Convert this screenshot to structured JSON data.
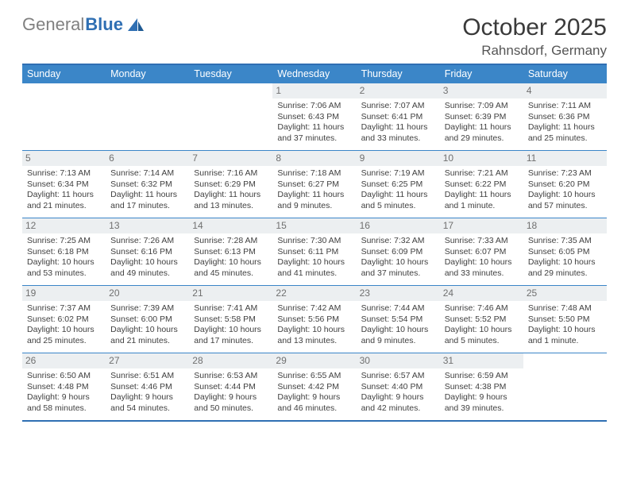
{
  "brand": {
    "gray": "General",
    "blue": "Blue"
  },
  "title": {
    "month": "October 2025",
    "location": "Rahnsdorf, Germany"
  },
  "dow": [
    "Sunday",
    "Monday",
    "Tuesday",
    "Wednesday",
    "Thursday",
    "Friday",
    "Saturday"
  ],
  "colors": {
    "header_bg": "#3b86c8",
    "border": "#2f6fb3",
    "daynum_bg": "#eceff1"
  },
  "weeks": [
    [
      {
        "blank": true
      },
      {
        "blank": true
      },
      {
        "blank": true
      },
      {
        "n": "1",
        "sr": "7:06 AM",
        "ss": "6:43 PM",
        "dl": "11 hours and 37 minutes."
      },
      {
        "n": "2",
        "sr": "7:07 AM",
        "ss": "6:41 PM",
        "dl": "11 hours and 33 minutes."
      },
      {
        "n": "3",
        "sr": "7:09 AM",
        "ss": "6:39 PM",
        "dl": "11 hours and 29 minutes."
      },
      {
        "n": "4",
        "sr": "7:11 AM",
        "ss": "6:36 PM",
        "dl": "11 hours and 25 minutes."
      }
    ],
    [
      {
        "n": "5",
        "sr": "7:13 AM",
        "ss": "6:34 PM",
        "dl": "11 hours and 21 minutes."
      },
      {
        "n": "6",
        "sr": "7:14 AM",
        "ss": "6:32 PM",
        "dl": "11 hours and 17 minutes."
      },
      {
        "n": "7",
        "sr": "7:16 AM",
        "ss": "6:29 PM",
        "dl": "11 hours and 13 minutes."
      },
      {
        "n": "8",
        "sr": "7:18 AM",
        "ss": "6:27 PM",
        "dl": "11 hours and 9 minutes."
      },
      {
        "n": "9",
        "sr": "7:19 AM",
        "ss": "6:25 PM",
        "dl": "11 hours and 5 minutes."
      },
      {
        "n": "10",
        "sr": "7:21 AM",
        "ss": "6:22 PM",
        "dl": "11 hours and 1 minute."
      },
      {
        "n": "11",
        "sr": "7:23 AM",
        "ss": "6:20 PM",
        "dl": "10 hours and 57 minutes."
      }
    ],
    [
      {
        "n": "12",
        "sr": "7:25 AM",
        "ss": "6:18 PM",
        "dl": "10 hours and 53 minutes."
      },
      {
        "n": "13",
        "sr": "7:26 AM",
        "ss": "6:16 PM",
        "dl": "10 hours and 49 minutes."
      },
      {
        "n": "14",
        "sr": "7:28 AM",
        "ss": "6:13 PM",
        "dl": "10 hours and 45 minutes."
      },
      {
        "n": "15",
        "sr": "7:30 AM",
        "ss": "6:11 PM",
        "dl": "10 hours and 41 minutes."
      },
      {
        "n": "16",
        "sr": "7:32 AM",
        "ss": "6:09 PM",
        "dl": "10 hours and 37 minutes."
      },
      {
        "n": "17",
        "sr": "7:33 AM",
        "ss": "6:07 PM",
        "dl": "10 hours and 33 minutes."
      },
      {
        "n": "18",
        "sr": "7:35 AM",
        "ss": "6:05 PM",
        "dl": "10 hours and 29 minutes."
      }
    ],
    [
      {
        "n": "19",
        "sr": "7:37 AM",
        "ss": "6:02 PM",
        "dl": "10 hours and 25 minutes."
      },
      {
        "n": "20",
        "sr": "7:39 AM",
        "ss": "6:00 PM",
        "dl": "10 hours and 21 minutes."
      },
      {
        "n": "21",
        "sr": "7:41 AM",
        "ss": "5:58 PM",
        "dl": "10 hours and 17 minutes."
      },
      {
        "n": "22",
        "sr": "7:42 AM",
        "ss": "5:56 PM",
        "dl": "10 hours and 13 minutes."
      },
      {
        "n": "23",
        "sr": "7:44 AM",
        "ss": "5:54 PM",
        "dl": "10 hours and 9 minutes."
      },
      {
        "n": "24",
        "sr": "7:46 AM",
        "ss": "5:52 PM",
        "dl": "10 hours and 5 minutes."
      },
      {
        "n": "25",
        "sr": "7:48 AM",
        "ss": "5:50 PM",
        "dl": "10 hours and 1 minute."
      }
    ],
    [
      {
        "n": "26",
        "sr": "6:50 AM",
        "ss": "4:48 PM",
        "dl": "9 hours and 58 minutes."
      },
      {
        "n": "27",
        "sr": "6:51 AM",
        "ss": "4:46 PM",
        "dl": "9 hours and 54 minutes."
      },
      {
        "n": "28",
        "sr": "6:53 AM",
        "ss": "4:44 PM",
        "dl": "9 hours and 50 minutes."
      },
      {
        "n": "29",
        "sr": "6:55 AM",
        "ss": "4:42 PM",
        "dl": "9 hours and 46 minutes."
      },
      {
        "n": "30",
        "sr": "6:57 AM",
        "ss": "4:40 PM",
        "dl": "9 hours and 42 minutes."
      },
      {
        "n": "31",
        "sr": "6:59 AM",
        "ss": "4:38 PM",
        "dl": "9 hours and 39 minutes."
      },
      {
        "blank": true
      }
    ]
  ],
  "labels": {
    "sunrise": "Sunrise: ",
    "sunset": "Sunset: ",
    "daylight": "Daylight: "
  }
}
